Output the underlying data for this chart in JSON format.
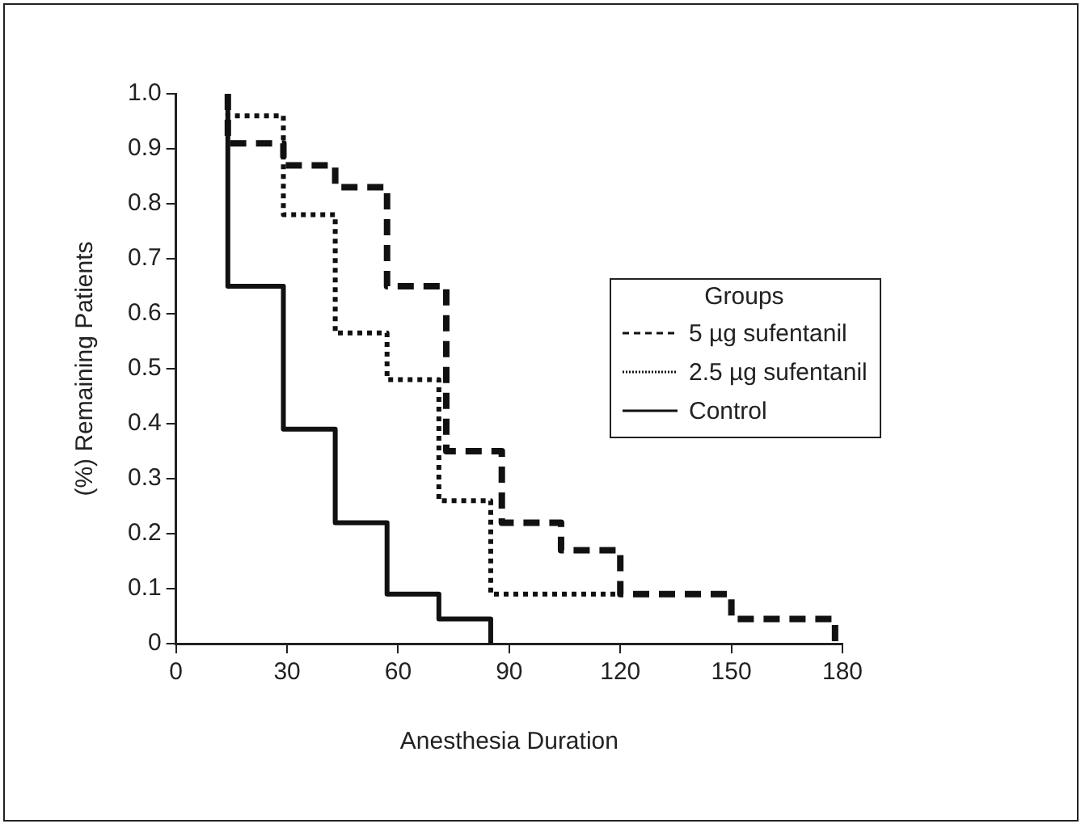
{
  "chart_data": {
    "type": "step",
    "xlabel": "Anesthesia Duration",
    "ylabel": "(%) Remaining Patients",
    "legend_title": "Groups",
    "legend": "right",
    "grid": false,
    "marker": "none",
    "xlim": [
      0,
      180
    ],
    "xticks": [
      0,
      30,
      60,
      90,
      120,
      150,
      180
    ],
    "ylim": [
      0,
      1
    ],
    "yticks": [
      0,
      0.1,
      0.2,
      0.3,
      0.4,
      0.5,
      0.6,
      0.7,
      0.8,
      0.9,
      {
        "value": 1,
        "label": "1.0"
      }
    ],
    "series": [
      {
        "name": "5 µg sufentanil",
        "color": "#111111",
        "line_style": "dashed",
        "x": [
          14,
          14,
          29,
          43,
          57,
          73,
          88,
          104,
          120,
          150,
          178,
          178
        ],
        "values": [
          1,
          0.91,
          0.87,
          0.83,
          0.65,
          0.35,
          0.22,
          0.17,
          0.09,
          0.045,
          0.045,
          0
        ]
      },
      {
        "name": "2.5 µg sufentanil",
        "color": "#111111",
        "line_style": "dotted",
        "x": [
          14,
          14,
          29,
          43,
          57,
          71,
          85,
          120
        ],
        "values": [
          1,
          0.96,
          0.78,
          0.565,
          0.48,
          0.26,
          0.09,
          0.09
        ]
      },
      {
        "name": "Control",
        "color": "#111111",
        "line_style": "solid",
        "x": [
          14,
          14,
          29,
          43,
          57,
          71,
          85,
          85
        ],
        "values": [
          1,
          0.65,
          0.39,
          0.22,
          0.09,
          0.045,
          0.045,
          0
        ]
      }
    ]
  }
}
